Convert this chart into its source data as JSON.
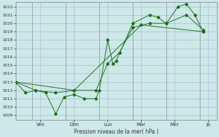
{
  "bg_color": "#cce8e8",
  "grid_color": "#b0b8d0",
  "line_color": "#1a6e1a",
  "marker_color": "#1a6e1a",
  "xlabel": "Pression niveau de la mer( hPa )",
  "ylim": [
    1008.5,
    1022.5
  ],
  "yticks": [
    1009,
    1010,
    1011,
    1012,
    1013,
    1014,
    1015,
    1016,
    1017,
    1018,
    1019,
    1020,
    1021,
    1022
  ],
  "xlim": [
    0,
    12
  ],
  "x_tick_positions": [
    1.5,
    3.5,
    5.5,
    7.5,
    9.5,
    11.5
  ],
  "x_tick_labels": [
    "Ven",
    "Dim",
    "Lun",
    "Mar",
    "Mer",
    "Je"
  ],
  "x_vline_positions": [
    1,
    3,
    5,
    7,
    9,
    11
  ],
  "series1_x": [
    0.0,
    0.6,
    1.2,
    1.8,
    2.4,
    2.9,
    3.5,
    4.1,
    4.8,
    5.0,
    5.5,
    5.8,
    6.0,
    7.0,
    8.0,
    8.5,
    9.0,
    9.7,
    10.2,
    10.7,
    11.2
  ],
  "series1_y": [
    1013.0,
    1011.7,
    1012.0,
    1011.7,
    1009.2,
    1011.2,
    1011.5,
    1011.0,
    1011.0,
    1012.0,
    1018.0,
    1015.2,
    1015.5,
    1020.0,
    1021.0,
    1020.7,
    1020.0,
    1022.0,
    1022.3,
    1021.0,
    1019.0
  ],
  "series2_x": [
    0.0,
    1.2,
    2.4,
    3.5,
    4.8,
    5.5,
    6.2,
    7.0,
    8.0,
    9.0,
    10.2,
    11.2
  ],
  "series2_y": [
    1013.0,
    1012.0,
    1011.7,
    1012.0,
    1012.0,
    1015.2,
    1016.5,
    1019.5,
    1020.0,
    1020.0,
    1021.0,
    1019.2
  ],
  "series3_x": [
    0.0,
    3.5,
    7.5,
    11.2
  ],
  "series3_y": [
    1013.0,
    1012.0,
    1019.8,
    1019.0
  ]
}
